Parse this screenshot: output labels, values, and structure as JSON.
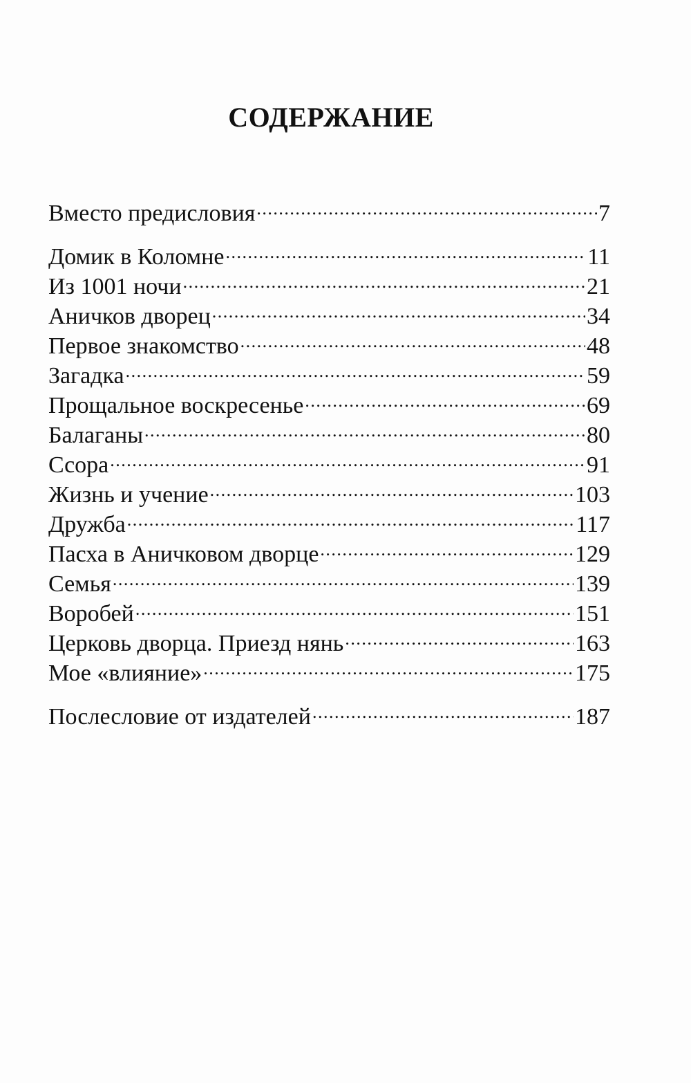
{
  "title": "СОДЕРЖАНИЕ",
  "entries": [
    {
      "title": "Вместо предисловия",
      "page": "7"
    },
    {
      "title": "Домик в Коломне",
      "page": "11"
    },
    {
      "title": "Из 1001 ночи",
      "page": "21"
    },
    {
      "title": "Аничков дворец",
      "page": "34"
    },
    {
      "title": "Первое знакомство",
      "page": "48"
    },
    {
      "title": "Загадка",
      "page": "59"
    },
    {
      "title": "Прощальное воскресенье",
      "page": "69"
    },
    {
      "title": "Балаганы",
      "page": "80"
    },
    {
      "title": "Ссора",
      "page": "91"
    },
    {
      "title": "Жизнь и учение",
      "page": "103"
    },
    {
      "title": "Дружба",
      "page": "117"
    },
    {
      "title": "Пасха в Аничковом дворце",
      "page": "129"
    },
    {
      "title": "Семья",
      "page": "139"
    },
    {
      "title": "Воробей",
      "page": "151"
    },
    {
      "title": "Церковь дворца. Приезд нянь",
      "page": "163"
    },
    {
      "title": "Мое «влияние»",
      "page": "175"
    },
    {
      "title": "Послесловие от издателей",
      "page": "187"
    }
  ]
}
